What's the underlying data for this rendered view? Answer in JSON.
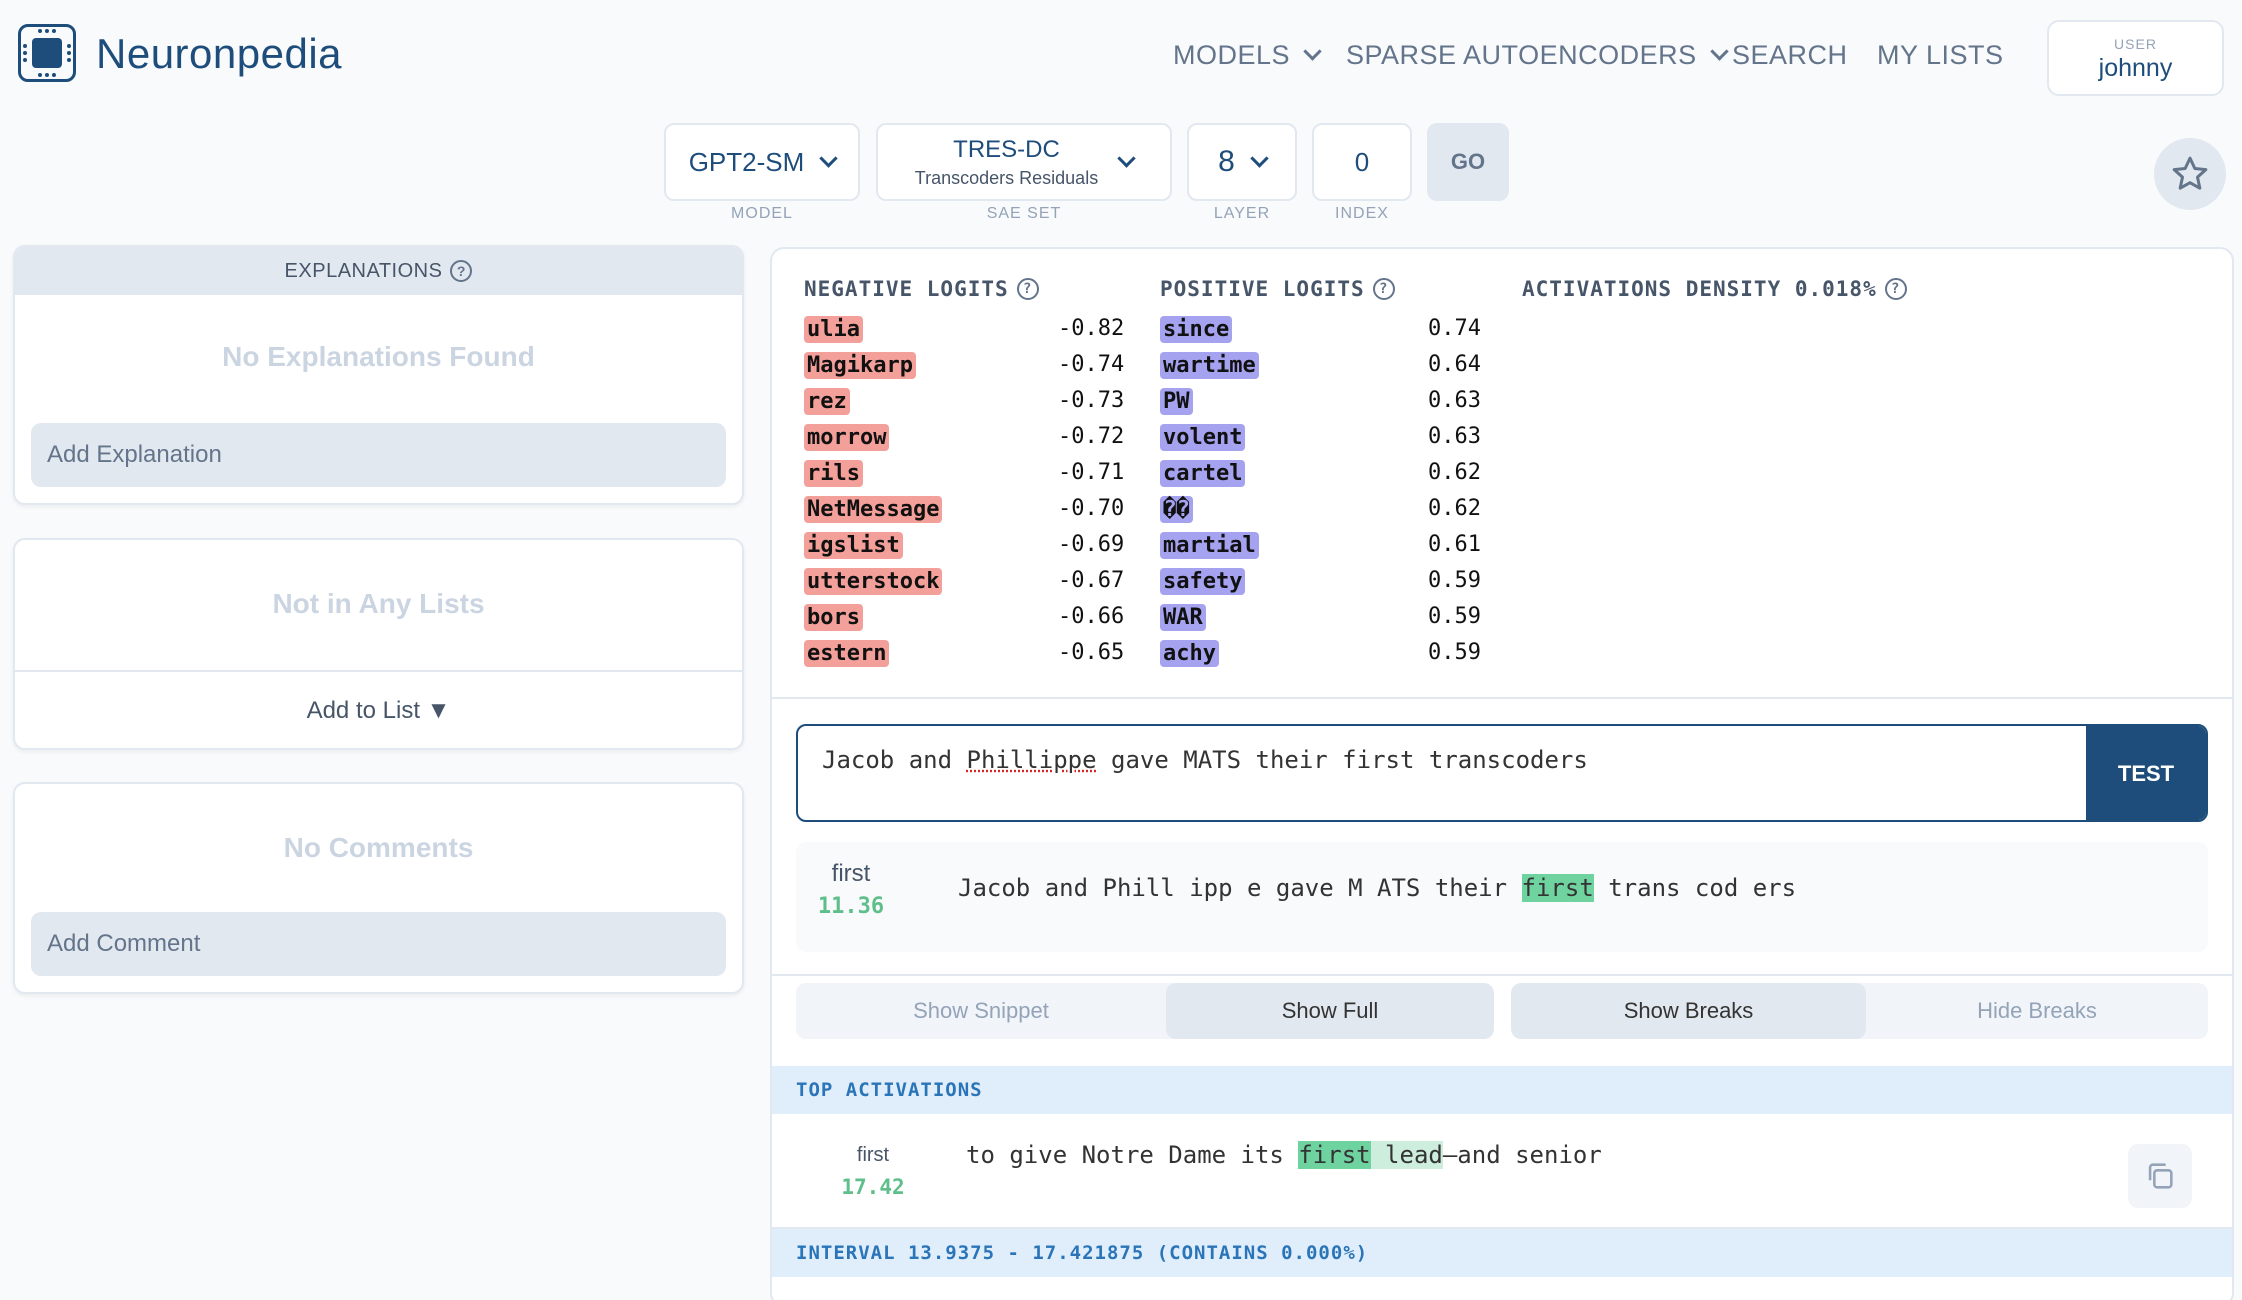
{
  "header": {
    "brand": "Neuronpedia",
    "nav": [
      "MODELS",
      "SPARSE AUTOENCODERS",
      "SEARCH",
      "MY LISTS"
    ],
    "user_label": "USER",
    "user_name": "johnny"
  },
  "selectors": {
    "model": {
      "value": "GPT2-SM",
      "label": "MODEL"
    },
    "sae_set": {
      "value": "TRES-DC",
      "sub": "Transcoders Residuals",
      "label": "SAE SET"
    },
    "layer": {
      "value": "8",
      "label": "LAYER"
    },
    "index": {
      "value": "0",
      "label": "INDEX"
    },
    "go_label": "GO"
  },
  "explanations": {
    "title": "EXPLANATIONS",
    "empty": "No Explanations Found",
    "add_placeholder": "Add Explanation"
  },
  "lists": {
    "empty": "Not in Any Lists",
    "add_label": "Add to List ▼"
  },
  "comments": {
    "empty": "No Comments",
    "add_placeholder": "Add Comment"
  },
  "logits": {
    "negative_title": "NEGATIVE LOGITS",
    "positive_title": "POSITIVE LOGITS",
    "density_title": "ACTIVATIONS DENSITY 0.018%",
    "negative": [
      {
        "token": "ulia",
        "value": "-0.82"
      },
      {
        "token": "Magikarp",
        "value": "-0.74"
      },
      {
        "token": "rez",
        "value": "-0.73"
      },
      {
        "token": "morrow",
        "value": "-0.72"
      },
      {
        "token": "rils",
        "value": "-0.71"
      },
      {
        "token": "NetMessage",
        "value": "-0.70"
      },
      {
        "token": "igslist",
        "value": "-0.69"
      },
      {
        "token": "utterstock",
        "value": "-0.67"
      },
      {
        "token": "bors",
        "value": "-0.66"
      },
      {
        "token": "estern",
        "value": "-0.65"
      }
    ],
    "positive": [
      {
        "token": " since",
        "value": "0.74"
      },
      {
        "token": " wartime",
        "value": "0.64"
      },
      {
        "token": " PW",
        "value": "0.63"
      },
      {
        "token": "volent",
        "value": "0.63"
      },
      {
        "token": " cartel",
        "value": "0.62"
      },
      {
        "token": "��",
        "value": "0.62"
      },
      {
        "token": " martial",
        "value": "0.61"
      },
      {
        "token": " safety",
        "value": "0.59"
      },
      {
        "token": " WAR",
        "value": "0.59"
      },
      {
        "token": "achy",
        "value": "0.59"
      }
    ]
  },
  "test": {
    "input_pre": "Jacob and ",
    "input_misspelled": "Phillippe",
    "input_post": " gave MATS their first transcoders",
    "button": "TEST",
    "result_token": "first",
    "result_value": "11.36",
    "result_pre": "Jacob and Phill ipp e gave M ATS their",
    "result_hl": "first",
    "result_post": "trans cod ers"
  },
  "toggles": {
    "show_snippet": "Show Snippet",
    "show_full": "Show Full",
    "show_breaks": "Show Breaks",
    "hide_breaks": "Hide Breaks"
  },
  "top_activations": {
    "title": "TOP ACTIVATIONS",
    "token": "first",
    "value": "17.42",
    "pre": "to give Notre Dame its",
    "hl": "first",
    "hl2": "lead",
    "post": "—and senior"
  },
  "interval": {
    "title": "INTERVAL 13.9375 - 17.421875 (CONTAINS 0.000%)"
  }
}
